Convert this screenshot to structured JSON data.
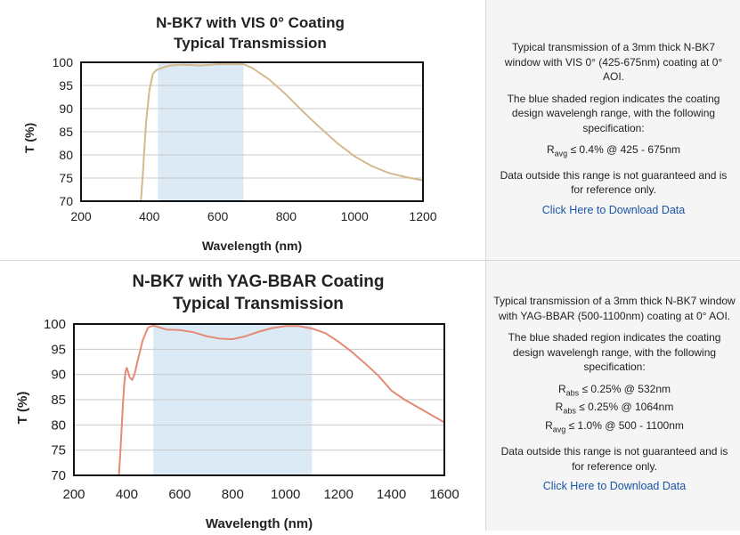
{
  "charts": [
    {
      "title_line1": "N-BK7 with VIS 0° Coating",
      "title_line2": "Typical Transmission",
      "xlabel": "Wavelength (nm)",
      "ylabel": "T (%)",
      "xticks": [
        "200",
        "400",
        "600",
        "800",
        "1000",
        "1200"
      ],
      "yticks": [
        "100",
        "95",
        "90",
        "85",
        "80",
        "75",
        "70"
      ],
      "line_color": "#d4b98e",
      "shade_color": "#dceaf6",
      "description": {
        "intro": "Typical transmission of a 3mm thick N-BK7 window with VIS 0° (425-675nm) coating at 0° AOI.",
        "shaded_note": "The blue shaded region indicates the coating design wavelengh range, with the following specification:",
        "specs": [
          {
            "sym": "R",
            "sub": "avg",
            "text": " ≤ 0.4% @ 425 - 675nm"
          }
        ],
        "disclaimer": "Data outside this range is not guaranteed and is for reference only.",
        "link": "Click Here to Download Data"
      }
    },
    {
      "title_line1": "N-BK7 with YAG-BBAR Coating",
      "title_line2": "Typical Transmission",
      "xlabel": "Wavelength (nm)",
      "ylabel": "T (%)",
      "xticks": [
        "200",
        "400",
        "600",
        "800",
        "1000",
        "1200",
        "1400",
        "1600"
      ],
      "yticks": [
        "100",
        "95",
        "90",
        "85",
        "80",
        "75",
        "70"
      ],
      "line_color": "#e58a74",
      "shade_color": "#dceaf6",
      "description": {
        "intro": "Typical transmission of a 3mm thick N-BK7 window with YAG-BBAR (500-1100nm) coating at 0° AOI.",
        "shaded_note": "The blue shaded region indicates the coating design wavelengh range, with the following specification:",
        "specs": [
          {
            "sym": "R",
            "sub": "abs",
            "text": " ≤ 0.25% @ 532nm"
          },
          {
            "sym": "R",
            "sub": "abs",
            "text": " ≤ 0.25% @ 1064nm"
          },
          {
            "sym": "R",
            "sub": "avg",
            "text": " ≤ 1.0% @ 500 - 1100nm"
          }
        ],
        "disclaimer": "Data outside this range is not guaranteed and is for reference only.",
        "link": "Click Here to Download Data"
      }
    }
  ],
  "chart_data": [
    {
      "type": "line",
      "title": "N-BK7 with VIS 0° Coating Typical Transmission",
      "xlabel": "Wavelength (nm)",
      "ylabel": "T (%)",
      "xlim": [
        200,
        1200
      ],
      "ylim": [
        70,
        100
      ],
      "shaded_range": [
        425,
        675
      ],
      "grid": true,
      "series": [
        {
          "x": [
            375,
            380,
            390,
            400,
            410,
            420,
            440,
            460,
            500,
            550,
            600,
            650,
            675,
            700,
            750,
            800,
            850,
            900,
            950,
            1000,
            1050,
            1100,
            1150,
            1200
          ],
          "y": [
            70,
            75,
            87,
            94,
            97.5,
            98.3,
            98.9,
            99.3,
            99.5,
            99.3,
            99.6,
            99.6,
            99.6,
            98.8,
            96.3,
            93.0,
            89.3,
            85.8,
            82.5,
            79.7,
            77.6,
            76.1,
            75.2,
            74.5
          ]
        }
      ]
    },
    {
      "type": "line",
      "title": "N-BK7 with YAG-BBAR Coating Typical Transmission",
      "xlabel": "Wavelength (nm)",
      "ylabel": "T (%)",
      "xlim": [
        200,
        1600
      ],
      "ylim": [
        70,
        100
      ],
      "shaded_range": [
        500,
        1100
      ],
      "grid": true,
      "series": [
        {
          "x": [
            370,
            375,
            380,
            385,
            390,
            395,
            400,
            405,
            410,
            420,
            430,
            440,
            460,
            480,
            500,
            550,
            600,
            650,
            700,
            750,
            800,
            850,
            900,
            950,
            1000,
            1050,
            1100,
            1150,
            1200,
            1250,
            1300,
            1350,
            1400,
            1450,
            1500,
            1550,
            1600
          ],
          "y": [
            70,
            74,
            79,
            84,
            88,
            90.5,
            91.3,
            90.5,
            89.5,
            88.9,
            90.2,
            92.5,
            96.8,
            99.3,
            99.7,
            98.9,
            98.8,
            98.4,
            97.6,
            97.1,
            97.0,
            97.6,
            98.5,
            99.2,
            99.6,
            99.6,
            99.1,
            98.2,
            96.5,
            94.5,
            92.2,
            89.8,
            86.8,
            85.0,
            83.5,
            82.0,
            80.5
          ]
        }
      ]
    }
  ]
}
